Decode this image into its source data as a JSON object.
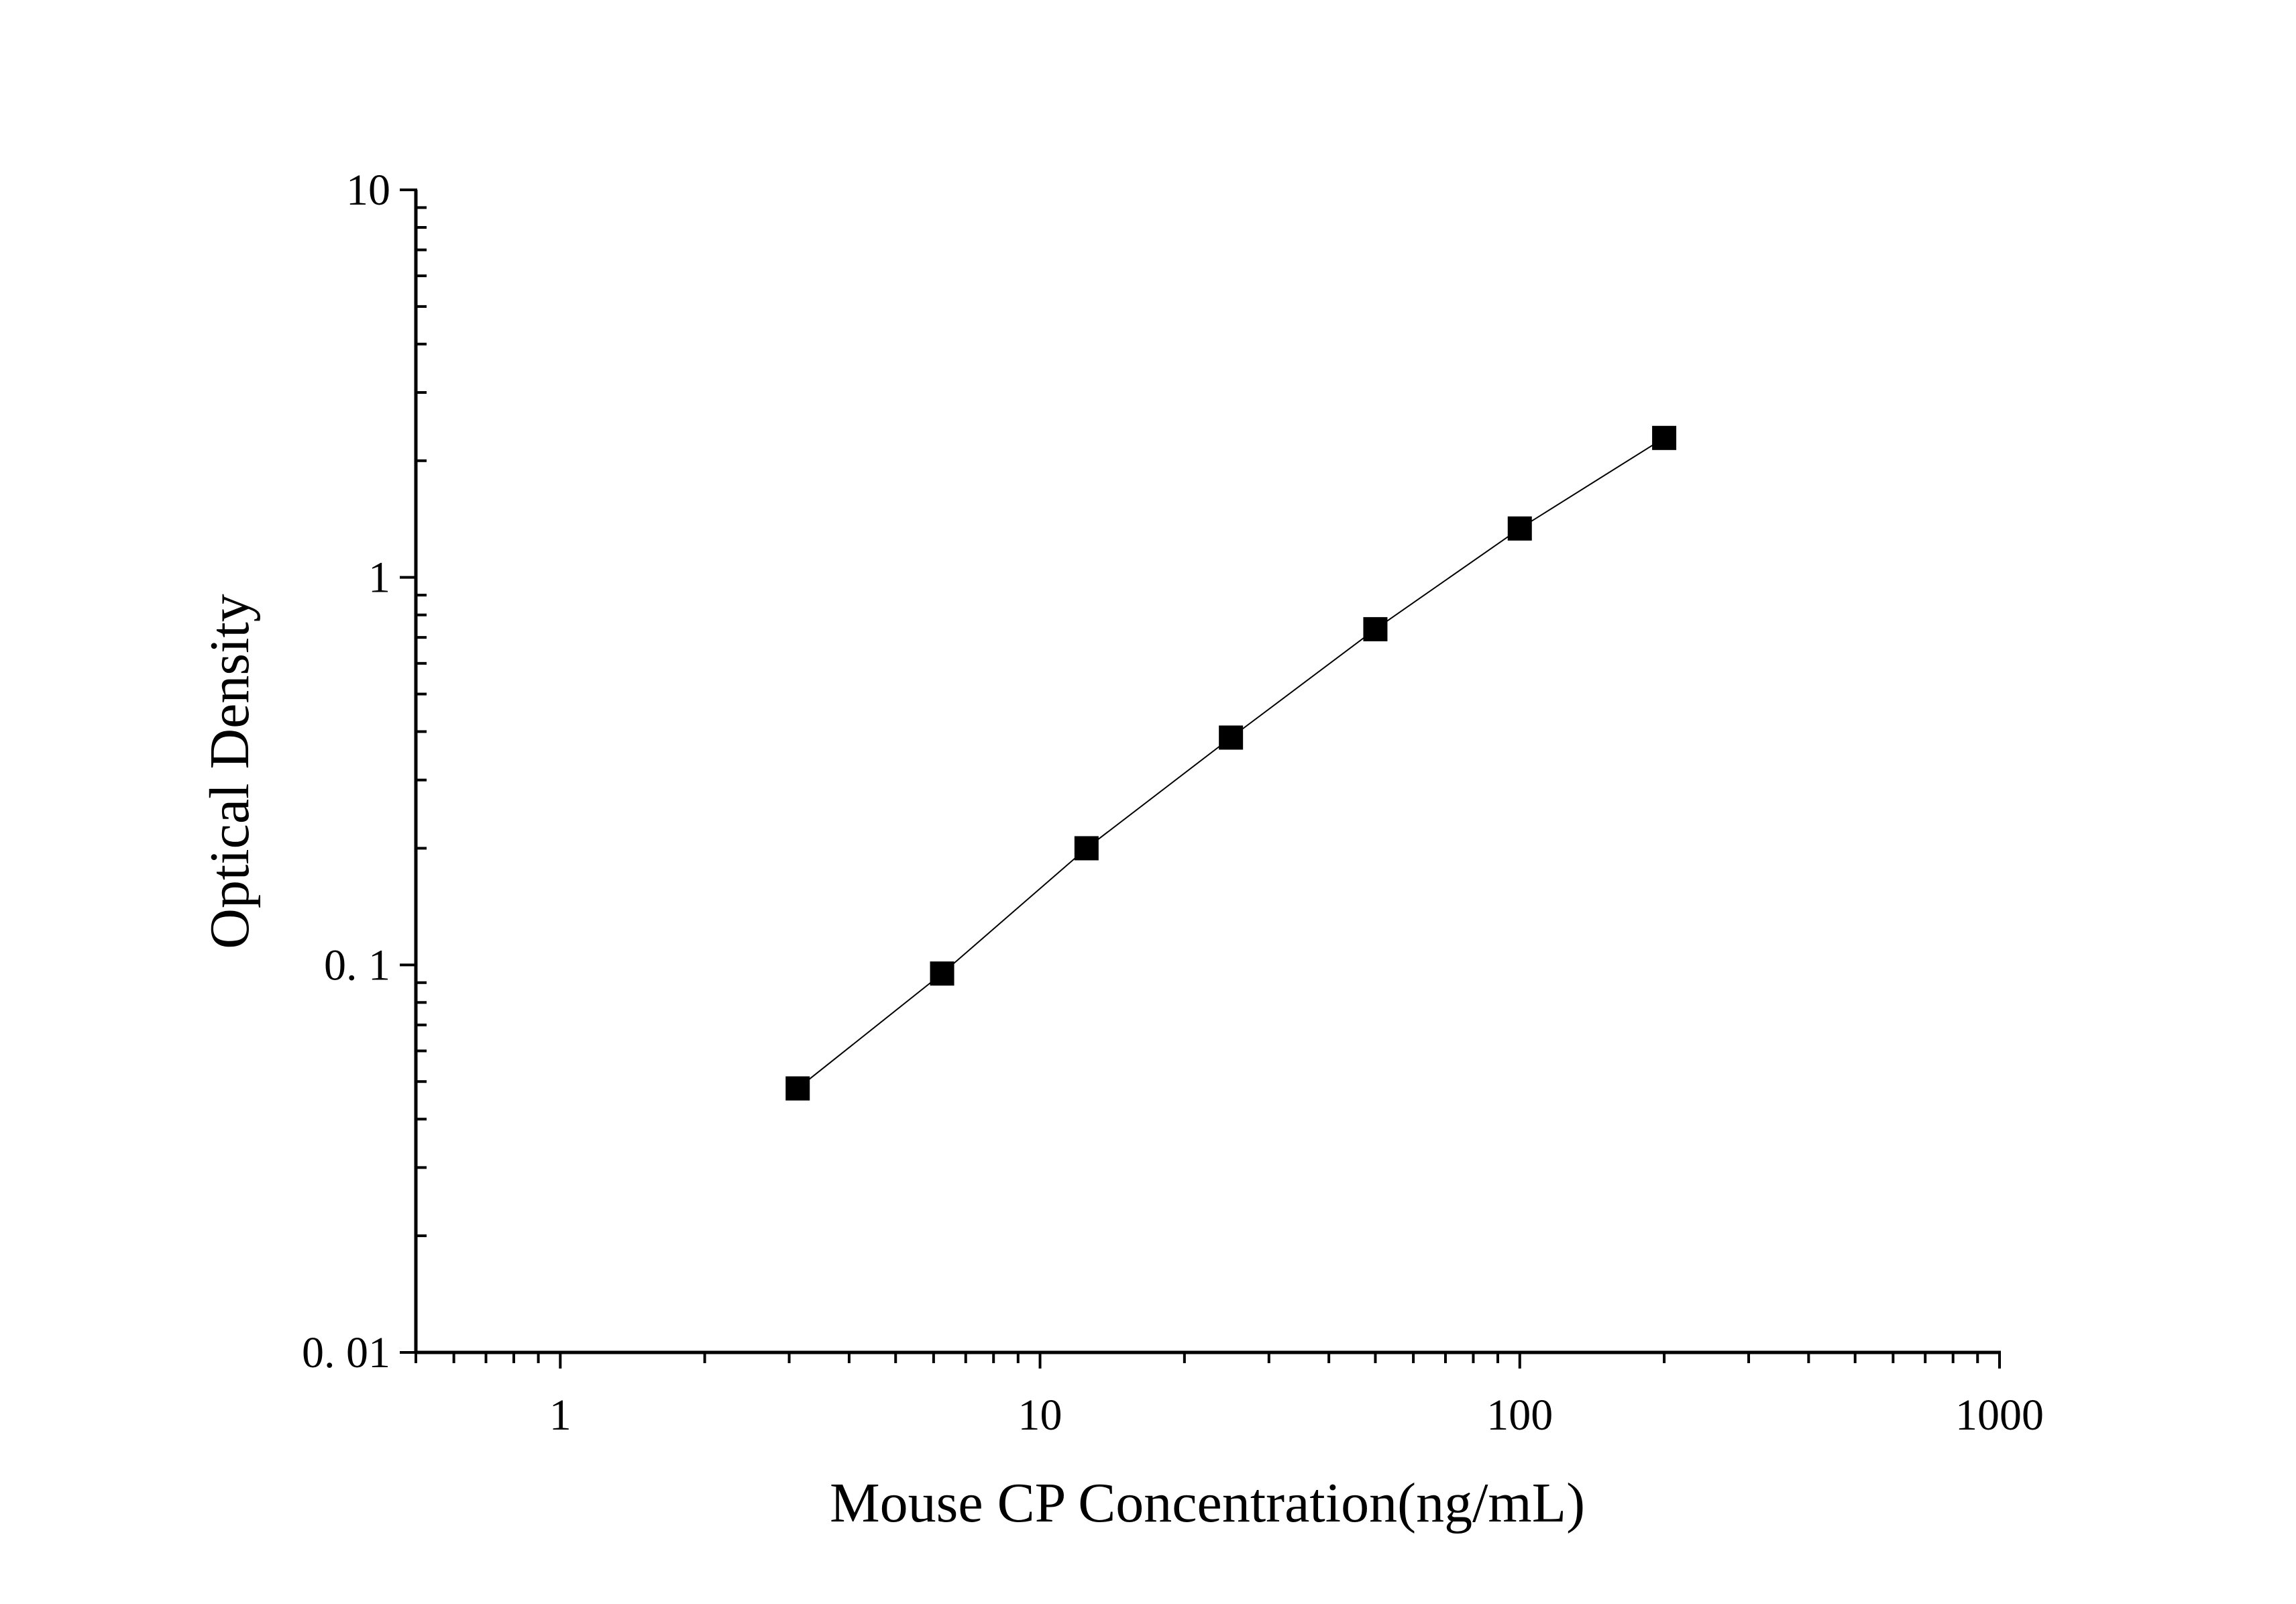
{
  "chart_data": {
    "type": "line",
    "title": "",
    "xlabel": "Mouse CP Concentration(ng/mL)",
    "ylabel": "Optical Density",
    "xscale": "log",
    "yscale": "log",
    "xlim": [
      0.5,
      1000
    ],
    "ylim": [
      0.01,
      10
    ],
    "xticks": [
      1,
      10,
      100,
      1000
    ],
    "xtick_labels": [
      "1",
      "10",
      "100",
      "1000"
    ],
    "yticks": [
      0.01,
      0.1,
      1,
      10
    ],
    "ytick_labels": [
      "0. 01",
      "0. 1",
      "1",
      "10"
    ],
    "grid": false,
    "marker": "square",
    "series": [
      {
        "x": [
          3.125,
          6.25,
          12.5,
          25,
          50,
          100,
          200
        ],
        "y": [
          0.048,
          0.095,
          0.2,
          0.386,
          0.735,
          1.337,
          2.29
        ]
      }
    ],
    "colors": {
      "line": "#000000",
      "marker": "#000000"
    }
  }
}
